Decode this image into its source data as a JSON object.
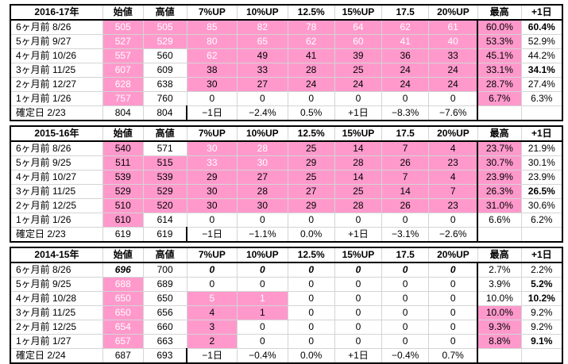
{
  "blocks": [
    {
      "title": "2016-17年",
      "headers": [
        "始値",
        "高値",
        "7%UP",
        "10%UP",
        "12.5%",
        "15%UP",
        "17.5",
        "20%UP",
        "最高",
        "+1日"
      ],
      "rows": [
        {
          "label": "6ヶ月前  8/26",
          "cells": [
            "505",
            "505",
            "85",
            "82",
            "78",
            "64",
            "62",
            "61",
            "60.0%",
            "60.4%"
          ]
        },
        {
          "label": "5ヶ月前  9/27",
          "cells": [
            "527",
            "529",
            "80",
            "65",
            "62",
            "60",
            "41",
            "40",
            "53.3%",
            "52.9%"
          ]
        },
        {
          "label": "4ヶ月前  10/26",
          "cells": [
            "557",
            "560",
            "62",
            "49",
            "41",
            "39",
            "36",
            "33",
            "45.1%",
            "44.2%"
          ]
        },
        {
          "label": "3ヶ月前  11/25",
          "cells": [
            "607",
            "609",
            "38",
            "33",
            "28",
            "25",
            "24",
            "24",
            "33.1%",
            "34.1%"
          ]
        },
        {
          "label": "2ヶ月前  12/27",
          "cells": [
            "628",
            "638",
            "30",
            "27",
            "24",
            "24",
            "24",
            "24",
            "28.7%",
            "27.4%"
          ]
        },
        {
          "label": "1ヶ月前  1/26",
          "cells": [
            "757",
            "760",
            "0",
            "0",
            "0",
            "0",
            "0",
            "0",
            "6.7%",
            "6.3%"
          ]
        },
        {
          "label": "確定日  2/23",
          "cells": [
            "804",
            "804",
            "−1日",
            "−2.4%",
            "0.5%",
            "+1日",
            "−8.3%",
            "−7.6%",
            "",
            ""
          ]
        }
      ]
    },
    {
      "title": "2015-16年",
      "headers": [
        "始値",
        "高値",
        "7%UP",
        "10%UP",
        "12.5%",
        "15%UP",
        "17.5",
        "20%UP",
        "最高",
        "+1日"
      ],
      "rows": [
        {
          "label": "6ヶ月前  8/26",
          "cells": [
            "540",
            "571",
            "30",
            "28",
            "25",
            "14",
            "7",
            "4",
            "23.7%",
            "21.9%"
          ]
        },
        {
          "label": "5ヶ月前  9/25",
          "cells": [
            "511",
            "515",
            "33",
            "30",
            "29",
            "28",
            "26",
            "23",
            "30.7%",
            "30.1%"
          ]
        },
        {
          "label": "4ヶ月前  10/27",
          "cells": [
            "539",
            "539",
            "29",
            "27",
            "25",
            "14",
            "7",
            "4",
            "23.9%",
            "23.9%"
          ]
        },
        {
          "label": "3ヶ月前  11/25",
          "cells": [
            "529",
            "529",
            "30",
            "28",
            "27",
            "25",
            "14",
            "7",
            "26.3%",
            "26.5%"
          ]
        },
        {
          "label": "2ヶ月前  12/25",
          "cells": [
            "510",
            "520",
            "30",
            "30",
            "29",
            "28",
            "26",
            "23",
            "31.0%",
            "30.6%"
          ]
        },
        {
          "label": "1ヶ月前  1/26",
          "cells": [
            "610",
            "614",
            "0",
            "0",
            "0",
            "0",
            "0",
            "0",
            "6.6%",
            "6.2%"
          ]
        },
        {
          "label": "確定日  2/23",
          "cells": [
            "619",
            "619",
            "−1日",
            "−1.1%",
            "0.0%",
            "+1日",
            "−3.1%",
            "−2.6%",
            "",
            ""
          ]
        }
      ]
    },
    {
      "title": "2014-15年",
      "headers": [
        "始値",
        "高値",
        "7%UP",
        "10%UP",
        "12.5%",
        "15%UP",
        "17.5",
        "20%UP",
        "最高",
        "+1日"
      ],
      "rows": [
        {
          "label": "6ヶ月前  8/26",
          "cells": [
            "696",
            "700",
            "0",
            "0",
            "0",
            "0",
            "0",
            "0",
            "2.7%",
            "2.2%"
          ]
        },
        {
          "label": "5ヶ月前  9/25",
          "cells": [
            "688",
            "689",
            "0",
            "0",
            "0",
            "0",
            "0",
            "0",
            "3.9%",
            "5.2%"
          ]
        },
        {
          "label": "4ヶ月前  10/28",
          "cells": [
            "650",
            "650",
            "5",
            "1",
            "0",
            "0",
            "0",
            "0",
            "10.0%",
            "10.2%"
          ]
        },
        {
          "label": "3ヶ月前  11/25",
          "cells": [
            "650",
            "656",
            "4",
            "1",
            "0",
            "0",
            "0",
            "0",
            "10.0%",
            "9.2%"
          ]
        },
        {
          "label": "2ヶ月前  12/25",
          "cells": [
            "654",
            "660",
            "3",
            "0",
            "0",
            "0",
            "0",
            "0",
            "9.3%",
            "9.2%"
          ]
        },
        {
          "label": "1ヶ月前  1/27",
          "cells": [
            "657",
            "663",
            "2",
            "0",
            "0",
            "0",
            "0",
            "0",
            "8.8%",
            "9.1%"
          ]
        },
        {
          "label": "確定日  2/24",
          "cells": [
            "687",
            "693",
            "−1日",
            "−0.4%",
            "0.0%",
            "+1日",
            "−0.4%",
            "0.7%",
            "",
            ""
          ]
        }
      ]
    }
  ],
  "colors": {
    "highlight": "#ff99cc",
    "gray_text": "#b7b7b7"
  }
}
